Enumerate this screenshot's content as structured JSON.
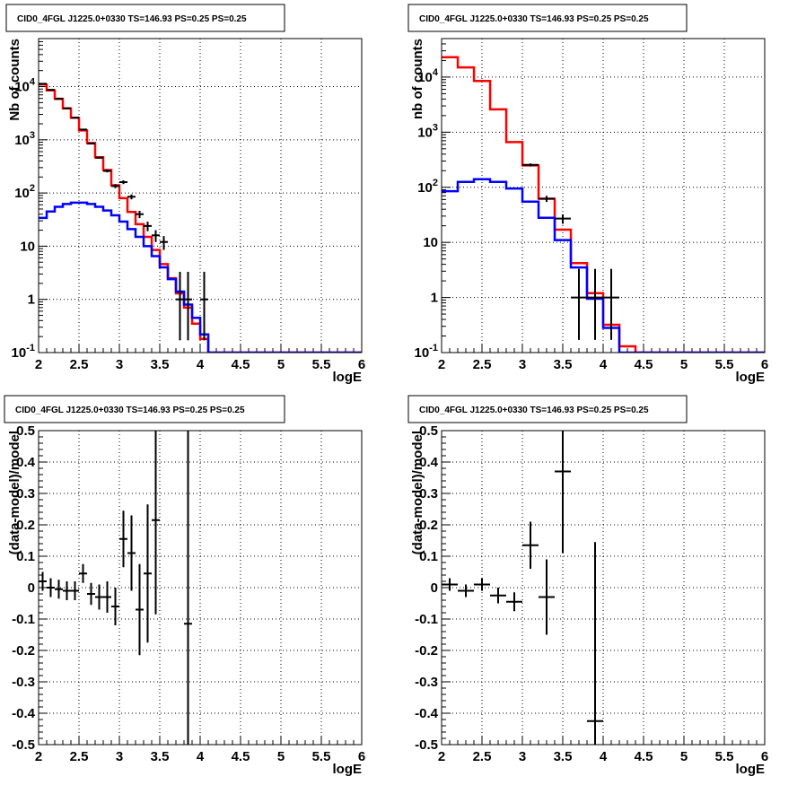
{
  "chart_data": [
    {
      "type": "histogram",
      "title": "CID0_4FGL J1225.0+0330 TS=146.93 PS=0.25 PS=0.25",
      "xlabel": "logE",
      "ylabel": "Nb of counts",
      "log_y": true,
      "xlim": [
        2,
        6
      ],
      "ylim": [
        0.1,
        80000
      ],
      "grid": true,
      "x_tick_labels": [
        "2",
        "2.5",
        "3",
        "3.5",
        "4",
        "4.5",
        "5",
        "5.5",
        "6"
      ],
      "y_tick_labels": [
        "10^-1",
        "1",
        "10",
        "10^2",
        "10^3",
        "10^4"
      ],
      "bin_edges": [
        2.0,
        2.1,
        2.2,
        2.3,
        2.4,
        2.5,
        2.6,
        2.7,
        2.8,
        2.9,
        3.0,
        3.1,
        3.2,
        3.3,
        3.4,
        3.5,
        3.6,
        3.7,
        3.8,
        3.9,
        4.0,
        4.1,
        4.2,
        4.3,
        4.4,
        4.5,
        4.6,
        4.7,
        4.8,
        4.9,
        5.0,
        5.1,
        5.2,
        5.3,
        5.4,
        5.5,
        5.6,
        5.7,
        5.8,
        5.9,
        6.0
      ],
      "series": [
        {
          "color": "#ff0000",
          "kind": "step",
          "values": [
            11000,
            8500,
            5900,
            3900,
            2600,
            1500,
            870,
            470,
            270,
            140,
            80,
            44,
            26,
            15,
            8.5,
            4.6,
            2.5,
            1.3,
            0.7,
            0.35,
            0.18,
            0.1,
            0.1,
            0.1,
            0.1,
            0.1,
            0.1,
            0.1,
            0.1,
            0.1,
            0.1,
            0.1,
            0.1,
            0.1,
            0.1,
            0.1,
            0.1,
            0.1,
            0.1,
            0.1
          ]
        },
        {
          "color": "#0000ff",
          "kind": "step",
          "values": [
            34,
            45,
            55,
            62,
            66,
            66,
            62,
            55,
            47,
            38,
            29,
            21,
            15,
            10,
            6.5,
            4.0,
            2.4,
            1.4,
            0.8,
            0.45,
            0.22,
            0.1,
            0.1,
            0.1,
            0.1,
            0.1,
            0.1,
            0.1,
            0.1,
            0.1,
            0.1,
            0.1,
            0.1,
            0.1,
            0.1,
            0.1,
            0.1,
            0.1,
            0.1,
            0.1
          ]
        },
        {
          "color": "#000000",
          "kind": "points",
          "xerr": 0.05,
          "x": [
            2.05,
            2.15,
            2.25,
            2.35,
            2.45,
            2.55,
            2.65,
            2.75,
            2.85,
            2.95,
            3.05,
            3.15,
            3.25,
            3.35,
            3.45,
            3.55,
            3.75,
            3.85,
            4.05
          ],
          "y": [
            11300,
            8700,
            5900,
            3900,
            2600,
            1560,
            850,
            460,
            260,
            135,
            160,
            85,
            40,
            24,
            16,
            12,
            1,
            1,
            1
          ],
          "yerr_low": [
            106,
            93,
            77,
            62,
            51,
            39,
            29,
            21,
            16,
            12,
            13,
            9,
            6.3,
            4.9,
            4,
            3.5,
            0.83,
            0.83,
            0.83
          ],
          "yerr_high": [
            106,
            93,
            77,
            62,
            51,
            39,
            29,
            21,
            16,
            12,
            13,
            9,
            6.3,
            4.9,
            4,
            3.5,
            2.3,
            2.3,
            2.3
          ]
        }
      ]
    },
    {
      "type": "histogram",
      "title": "CID0_4FGL J1225.0+0330 TS=146.93 PS=0.25 PS=0.25",
      "xlabel": "logE",
      "ylabel": "nb of counts",
      "log_y": true,
      "xlim": [
        2,
        6
      ],
      "ylim": [
        0.1,
        50000
      ],
      "grid": true,
      "x_tick_labels": [
        "2",
        "2.5",
        "3",
        "3.5",
        "4",
        "4.5",
        "5",
        "5.5",
        "6"
      ],
      "y_tick_labels": [
        "10^-1",
        "1",
        "10",
        "10^2",
        "10^3",
        "10^4"
      ],
      "bin_edges": [
        2.0,
        2.2,
        2.4,
        2.6,
        2.8,
        3.0,
        3.2,
        3.4,
        3.6,
        3.8,
        4.0,
        4.2,
        4.4,
        4.6,
        4.8,
        5.0,
        5.2,
        5.4,
        5.6,
        5.8,
        6.0
      ],
      "series": [
        {
          "color": "#ff0000",
          "kind": "step",
          "values": [
            23000,
            15000,
            8500,
            2600,
            660,
            250,
            62,
            17,
            4.2,
            1.2,
            0.32,
            0.13,
            0.1,
            0.1,
            0.1,
            0.1,
            0.1,
            0.1,
            0.1,
            0.1
          ]
        },
        {
          "color": "#0000ff",
          "kind": "step",
          "values": [
            85,
            125,
            140,
            125,
            95,
            55,
            28,
            11,
            3.5,
            0.95,
            0.28,
            0.1,
            0.1,
            0.1,
            0.1,
            0.1,
            0.1,
            0.1,
            0.1,
            0.1
          ]
        },
        {
          "color": "#000000",
          "kind": "points",
          "xerr": 0.1,
          "x": [
            3.1,
            3.3,
            3.5,
            3.7,
            3.9,
            4.1
          ],
          "y": [
            255,
            62,
            27,
            1,
            1,
            1
          ],
          "yerr_low": [
            16,
            7.9,
            5.2,
            0.83,
            0.83,
            0.83
          ],
          "yerr_high": [
            16,
            7.9,
            5.2,
            2.3,
            2.3,
            2.3
          ]
        }
      ]
    },
    {
      "type": "scatter",
      "title": "CID0_4FGL J1225.0+0330 TS=146.93 PS=0.25 PS=0.25",
      "xlabel": "logE",
      "ylabel": "(data-model)/model",
      "xlim": [
        2,
        6
      ],
      "ylim": [
        -0.5,
        0.5
      ],
      "grid": true,
      "x_tick_labels": [
        "2",
        "2.5",
        "3",
        "3.5",
        "4",
        "4.5",
        "5",
        "5.5",
        "6"
      ],
      "y_tick_labels": [
        "-0.5",
        "-0.4",
        "-0.3",
        "-0.2",
        "-0.1",
        "0",
        "0.1",
        "0.2",
        "0.3",
        "0.4",
        "0.5"
      ],
      "series": [
        {
          "color": "#000000",
          "kind": "points",
          "xerr": 0.05,
          "x": [
            2.05,
            2.15,
            2.25,
            2.35,
            2.45,
            2.55,
            2.65,
            2.75,
            2.85,
            2.95,
            3.05,
            3.15,
            3.25,
            3.35,
            3.45,
            3.85
          ],
          "y": [
            0.02,
            0.0,
            -0.005,
            -0.01,
            -0.01,
            0.045,
            -0.02,
            -0.03,
            -0.03,
            -0.06,
            0.155,
            0.11,
            -0.07,
            0.045,
            0.215,
            -0.115
          ],
          "yerr": [
            0.03,
            0.03,
            0.03,
            0.03,
            0.03,
            0.03,
            0.035,
            0.04,
            0.05,
            0.06,
            0.09,
            0.12,
            0.145,
            0.22,
            0.3,
            0.9
          ]
        }
      ]
    },
    {
      "type": "scatter",
      "title": "CID0_4FGL J1225.0+0330 TS=146.93 PS=0.25 PS=0.25",
      "xlabel": "logE",
      "ylabel": "(data-model)/model",
      "xlim": [
        2,
        6
      ],
      "ylim": [
        -0.5,
        0.5
      ],
      "grid": true,
      "x_tick_labels": [
        "2",
        "2.5",
        "3",
        "3.5",
        "4",
        "4.5",
        "5",
        "5.5",
        "6"
      ],
      "y_tick_labels": [
        "-0.5",
        "-0.4",
        "-0.3",
        "-0.2",
        "-0.1",
        "0",
        "0.1",
        "0.2",
        "0.3",
        "0.4",
        "0.5"
      ],
      "series": [
        {
          "color": "#000000",
          "kind": "points",
          "xerr": 0.1,
          "x": [
            2.1,
            2.3,
            2.5,
            2.7,
            2.9,
            3.1,
            3.3,
            3.5,
            3.9
          ],
          "y": [
            0.01,
            -0.01,
            0.01,
            -0.025,
            -0.045,
            0.135,
            -0.03,
            0.37,
            -0.425
          ],
          "yerr": [
            0.02,
            0.02,
            0.02,
            0.025,
            0.03,
            0.075,
            0.12,
            0.26,
            0.57
          ]
        }
      ]
    }
  ]
}
